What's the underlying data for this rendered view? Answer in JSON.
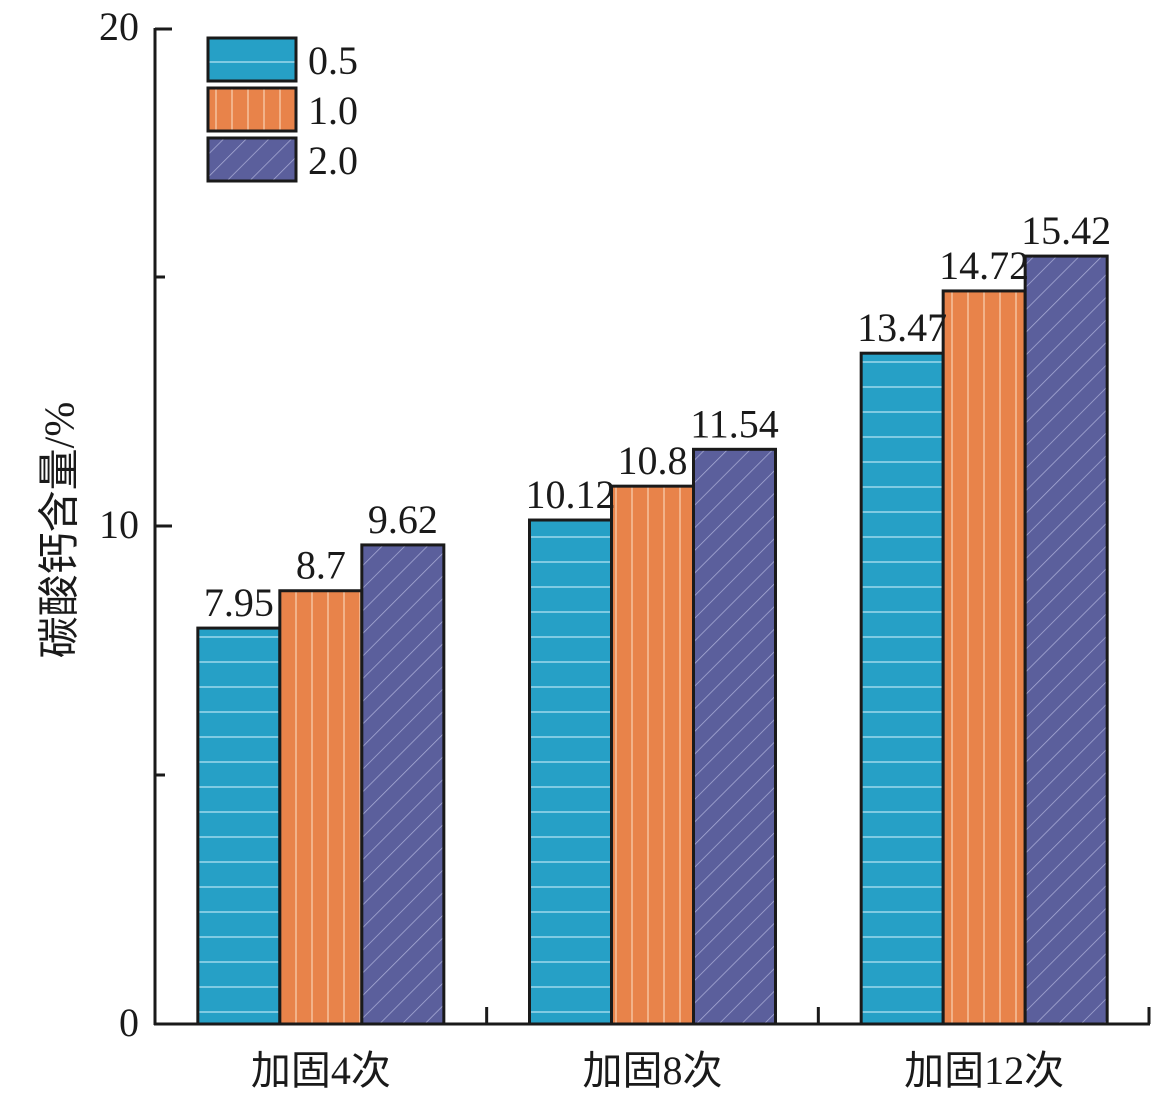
{
  "chart_data": {
    "type": "bar",
    "title": "",
    "xlabel": "",
    "ylabel": "碳酸钙含量/%",
    "ylim": [
      0,
      20
    ],
    "yticks": [
      0,
      10,
      20
    ],
    "yminor_ticks": [
      5,
      15
    ],
    "grid": false,
    "legend_position": "top-left",
    "categories": [
      "加固4次",
      "加固8次",
      "加固12次"
    ],
    "series": [
      {
        "name": "0.5",
        "values": [
          7.95,
          10.12,
          13.47
        ],
        "labels": [
          "7.95",
          "10.12",
          "13.47"
        ],
        "color": "#26a0c6",
        "pattern": "horizontal"
      },
      {
        "name": "1.0",
        "values": [
          8.7,
          10.8,
          14.72
        ],
        "labels": [
          "8.7",
          "10.8",
          "14.72"
        ],
        "color": "#e8834a",
        "pattern": "vertical"
      },
      {
        "name": "2.0",
        "values": [
          9.62,
          11.54,
          15.42
        ],
        "labels": [
          "9.62",
          "11.54",
          "15.42"
        ],
        "color": "#5b5f9c",
        "pattern": "diagonal"
      }
    ]
  }
}
